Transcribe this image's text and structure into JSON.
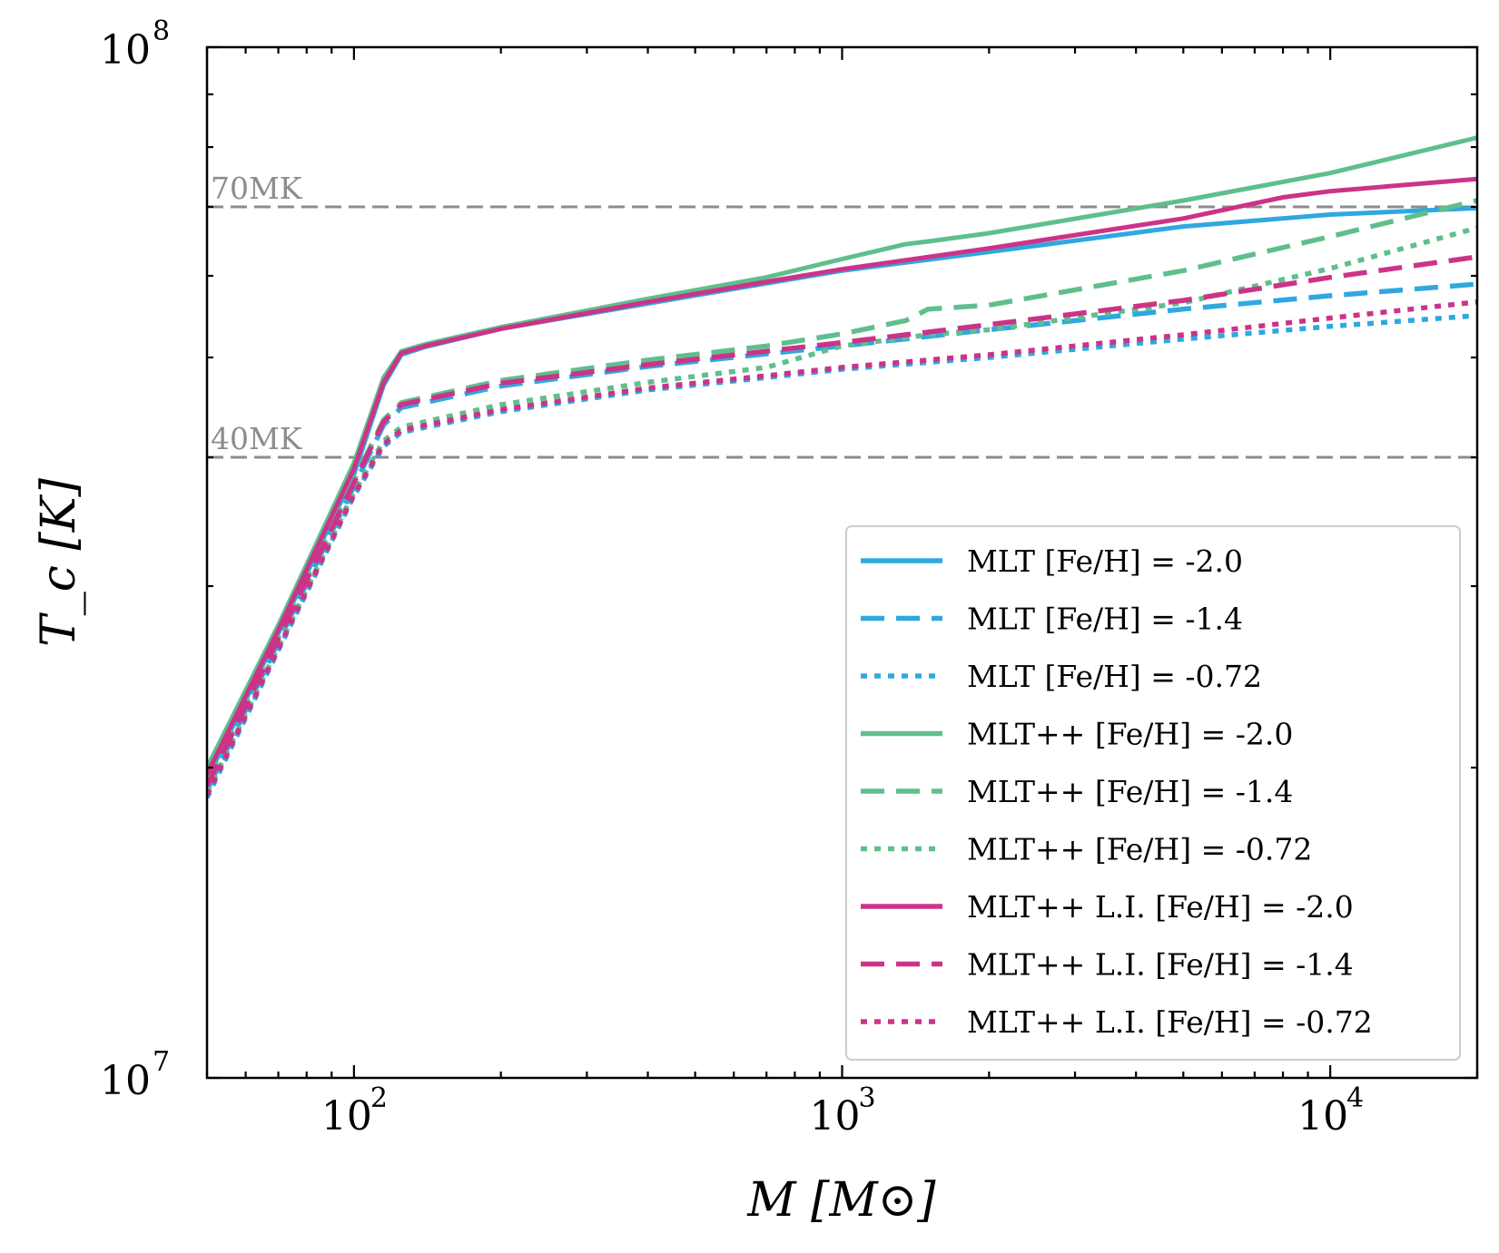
{
  "colors": {
    "MLT": "#2fa8e0",
    "MLT++": "#5fbf8c",
    "MLT++ L.I.": "#cc3388",
    "reference_line": "#8c8c8c"
  },
  "chart_data": {
    "type": "line",
    "xlabel": "M [M⊙]",
    "ylabel": "T_c [K]",
    "xscale": "log",
    "yscale": "log",
    "xlim": [
      50,
      20000
    ],
    "ylim": [
      10000000,
      100000000
    ],
    "x_ticks": [
      {
        "value": 100,
        "base": "10",
        "exp": "2"
      },
      {
        "value": 1000,
        "base": "10",
        "exp": "3"
      },
      {
        "value": 10000,
        "base": "10",
        "exp": "4"
      }
    ],
    "y_ticks": [
      {
        "value": 10000000,
        "base": "10",
        "exp": "7"
      },
      {
        "value": 100000000,
        "base": "10",
        "exp": "8"
      }
    ],
    "reference_lines": [
      {
        "label": "70MK",
        "value": 70000000
      },
      {
        "label": "40MK",
        "value": 40000000
      }
    ],
    "legend_position": "lower right",
    "series": [
      {
        "name": "MLT [Fe/H] = -2.0",
        "group": "MLT",
        "dash": "solid",
        "points": [
          [
            50,
            19500000
          ],
          [
            70,
            27000000
          ],
          [
            100,
            38500000
          ],
          [
            115,
            47000000
          ],
          [
            125,
            50300000
          ],
          [
            140,
            51200000
          ],
          [
            200,
            53300000
          ],
          [
            400,
            56400000
          ],
          [
            700,
            59000000
          ],
          [
            1000,
            60700000
          ],
          [
            2000,
            63300000
          ],
          [
            5000,
            67000000
          ],
          [
            10000,
            68800000
          ],
          [
            20000,
            69800000
          ]
        ]
      },
      {
        "name": "MLT [Fe/H] = -1.4",
        "group": "MLT",
        "dash": "dashed",
        "points": [
          [
            50,
            19000000
          ],
          [
            70,
            26500000
          ],
          [
            100,
            37500000
          ],
          [
            115,
            43000000
          ],
          [
            125,
            44700000
          ],
          [
            200,
            46900000
          ],
          [
            400,
            49000000
          ],
          [
            700,
            50400000
          ],
          [
            1000,
            51300000
          ],
          [
            2000,
            53200000
          ],
          [
            5000,
            55700000
          ],
          [
            10000,
            57400000
          ],
          [
            20000,
            58900000
          ]
        ]
      },
      {
        "name": "MLT [Fe/H] = -0.72",
        "group": "MLT",
        "dash": "dotted",
        "points": [
          [
            50,
            18700000
          ],
          [
            70,
            26000000
          ],
          [
            100,
            36700000
          ],
          [
            115,
            41000000
          ],
          [
            125,
            42300000
          ],
          [
            200,
            44300000
          ],
          [
            400,
            46500000
          ],
          [
            700,
            47800000
          ],
          [
            1000,
            48700000
          ],
          [
            2000,
            50000000
          ],
          [
            5000,
            52100000
          ],
          [
            10000,
            53600000
          ],
          [
            20000,
            54900000
          ]
        ]
      },
      {
        "name": "MLT++ [Fe/H] = -2.0",
        "group": "MLT++",
        "dash": "solid",
        "points": [
          [
            50,
            20000000
          ],
          [
            70,
            27500000
          ],
          [
            100,
            39500000
          ],
          [
            115,
            47800000
          ],
          [
            125,
            50700000
          ],
          [
            140,
            51500000
          ],
          [
            200,
            53500000
          ],
          [
            400,
            57000000
          ],
          [
            700,
            59800000
          ],
          [
            1000,
            62300000
          ],
          [
            1350,
            64400000
          ],
          [
            1500,
            64800000
          ],
          [
            2000,
            66000000
          ],
          [
            5000,
            71000000
          ],
          [
            10000,
            75500000
          ],
          [
            20000,
            81700000
          ]
        ]
      },
      {
        "name": "MLT++ [Fe/H] = -1.4",
        "group": "MLT++",
        "dash": "dashed",
        "points": [
          [
            50,
            19300000
          ],
          [
            70,
            26800000
          ],
          [
            100,
            38000000
          ],
          [
            115,
            43500000
          ],
          [
            125,
            45200000
          ],
          [
            200,
            47500000
          ],
          [
            400,
            49700000
          ],
          [
            700,
            51300000
          ],
          [
            1000,
            52700000
          ],
          [
            1350,
            54300000
          ],
          [
            1500,
            55700000
          ],
          [
            2000,
            56200000
          ],
          [
            5000,
            60700000
          ],
          [
            10000,
            65500000
          ],
          [
            20000,
            71000000
          ]
        ]
      },
      {
        "name": "MLT++ [Fe/H] = -0.72",
        "group": "MLT++",
        "dash": "dotted",
        "points": [
          [
            50,
            18900000
          ],
          [
            70,
            26200000
          ],
          [
            100,
            37000000
          ],
          [
            115,
            41500000
          ],
          [
            125,
            42800000
          ],
          [
            200,
            45000000
          ],
          [
            400,
            47300000
          ],
          [
            700,
            48900000
          ],
          [
            1000,
            51300000
          ],
          [
            1500,
            52600000
          ],
          [
            2000,
            53200000
          ],
          [
            5000,
            56500000
          ],
          [
            10000,
            61000000
          ],
          [
            20000,
            66800000
          ]
        ]
      },
      {
        "name": "MLT++ L.I. [Fe/H] = -2.0",
        "group": "MLT++ L.I.",
        "dash": "solid",
        "points": [
          [
            50,
            19700000
          ],
          [
            70,
            27200000
          ],
          [
            100,
            39000000
          ],
          [
            115,
            47300000
          ],
          [
            125,
            50500000
          ],
          [
            140,
            51300000
          ],
          [
            200,
            53300000
          ],
          [
            400,
            56600000
          ],
          [
            700,
            59200000
          ],
          [
            1000,
            60900000
          ],
          [
            2000,
            63800000
          ],
          [
            5000,
            68200000
          ],
          [
            8000,
            71500000
          ],
          [
            10000,
            72500000
          ],
          [
            20000,
            74500000
          ]
        ]
      },
      {
        "name": "MLT++ L.I. [Fe/H] = -1.4",
        "group": "MLT++ L.I.",
        "dash": "dashed",
        "points": [
          [
            50,
            19200000
          ],
          [
            70,
            26700000
          ],
          [
            100,
            37800000
          ],
          [
            115,
            43300000
          ],
          [
            125,
            45000000
          ],
          [
            200,
            47200000
          ],
          [
            400,
            49200000
          ],
          [
            700,
            50700000
          ],
          [
            1000,
            51700000
          ],
          [
            2000,
            53800000
          ],
          [
            5000,
            56800000
          ],
          [
            10000,
            59800000
          ],
          [
            20000,
            62600000
          ]
        ]
      },
      {
        "name": "MLT++ L.I. [Fe/H] = -0.72",
        "group": "MLT++ L.I.",
        "dash": "dotted",
        "points": [
          [
            50,
            18800000
          ],
          [
            70,
            26100000
          ],
          [
            100,
            36800000
          ],
          [
            115,
            41200000
          ],
          [
            125,
            42500000
          ],
          [
            200,
            44500000
          ],
          [
            400,
            46700000
          ],
          [
            700,
            48000000
          ],
          [
            1000,
            48900000
          ],
          [
            2000,
            50300000
          ],
          [
            5000,
            52600000
          ],
          [
            10000,
            54600000
          ],
          [
            20000,
            56600000
          ]
        ]
      }
    ]
  }
}
